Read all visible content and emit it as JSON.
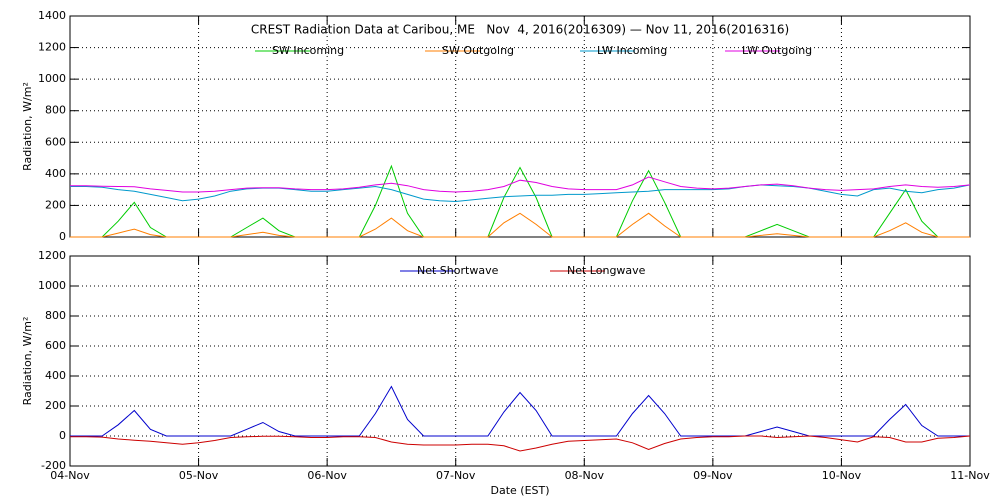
{
  "chart_data": [
    {
      "type": "line",
      "title": "CREST Radiation Data at Caribou, ME   Nov  4, 2016(2016309) — Nov 11, 2016(2016316)",
      "y_label": "Radiation, W/m²",
      "x": [
        0,
        0.125,
        0.25,
        0.375,
        0.5,
        0.625,
        0.75,
        0.875,
        1,
        1.125,
        1.25,
        1.375,
        1.5,
        1.625,
        1.75,
        1.875,
        2,
        2.125,
        2.25,
        2.375,
        2.5,
        2.625,
        2.75,
        2.875,
        3,
        3.125,
        3.25,
        3.375,
        3.5,
        3.625,
        3.75,
        3.875,
        4,
        4.125,
        4.25,
        4.375,
        4.5,
        4.625,
        4.75,
        4.875,
        5,
        5.125,
        5.25,
        5.375,
        5.5,
        5.625,
        5.75,
        5.875,
        6,
        6.125,
        6.25,
        6.375,
        6.5,
        6.625,
        6.75,
        6.875,
        7
      ],
      "xlim": [
        0,
        7
      ],
      "xticks": [
        1,
        2,
        3,
        4,
        5,
        6
      ],
      "ylim": [
        0,
        1400
      ],
      "yticks": [
        0,
        200,
        400,
        600,
        800,
        1000,
        1200,
        1400
      ],
      "grid": true,
      "series": [
        {
          "name": "SW Incoming",
          "color": "#00cc00",
          "values": [
            0,
            0,
            0,
            100,
            220,
            60,
            0,
            0,
            0,
            0,
            0,
            60,
            120,
            40,
            0,
            0,
            0,
            0,
            0,
            200,
            450,
            150,
            0,
            0,
            0,
            0,
            0,
            250,
            440,
            250,
            0,
            0,
            0,
            0,
            0,
            230,
            420,
            220,
            0,
            0,
            0,
            0,
            0,
            40,
            80,
            40,
            0,
            0,
            0,
            0,
            0,
            150,
            300,
            100,
            0,
            0,
            0
          ]
        },
        {
          "name": "SW Outgoing",
          "color": "#ff7f00",
          "values": [
            0,
            0,
            0,
            25,
            50,
            15,
            0,
            0,
            0,
            0,
            0,
            15,
            30,
            10,
            0,
            0,
            0,
            0,
            0,
            50,
            120,
            40,
            0,
            0,
            0,
            0,
            0,
            90,
            150,
            80,
            0,
            0,
            0,
            0,
            0,
            80,
            150,
            70,
            0,
            0,
            0,
            0,
            0,
            10,
            20,
            10,
            0,
            0,
            0,
            0,
            0,
            40,
            90,
            30,
            0,
            0,
            0
          ]
        },
        {
          "name": "LW Incoming",
          "color": "#0099cc",
          "values": [
            320,
            320,
            315,
            300,
            290,
            270,
            250,
            230,
            240,
            260,
            290,
            305,
            310,
            310,
            300,
            290,
            290,
            300,
            310,
            320,
            300,
            270,
            240,
            230,
            225,
            235,
            245,
            255,
            260,
            265,
            265,
            270,
            270,
            275,
            280,
            285,
            290,
            300,
            300,
            300,
            300,
            305,
            320,
            330,
            325,
            320,
            310,
            290,
            270,
            260,
            300,
            310,
            290,
            280,
            300,
            310,
            330
          ]
        },
        {
          "name": "LW Outgoing",
          "color": "#e000e0",
          "values": [
            325,
            325,
            322,
            320,
            318,
            305,
            295,
            285,
            285,
            290,
            300,
            310,
            312,
            312,
            305,
            300,
            300,
            305,
            315,
            330,
            340,
            325,
            300,
            290,
            285,
            290,
            300,
            320,
            360,
            345,
            320,
            305,
            300,
            300,
            300,
            330,
            380,
            350,
            320,
            310,
            305,
            310,
            320,
            330,
            335,
            325,
            310,
            300,
            295,
            300,
            305,
            320,
            330,
            320,
            315,
            320,
            330
          ]
        }
      ]
    },
    {
      "type": "line",
      "y_label": "Radiation, W/m²",
      "x_label": "Date (EST)",
      "x": [
        0,
        0.125,
        0.25,
        0.375,
        0.5,
        0.625,
        0.75,
        0.875,
        1,
        1.125,
        1.25,
        1.375,
        1.5,
        1.625,
        1.75,
        1.875,
        2,
        2.125,
        2.25,
        2.375,
        2.5,
        2.625,
        2.75,
        2.875,
        3,
        3.125,
        3.25,
        3.375,
        3.5,
        3.625,
        3.75,
        3.875,
        4,
        4.125,
        4.25,
        4.375,
        4.5,
        4.625,
        4.75,
        4.875,
        5,
        5.125,
        5.25,
        5.375,
        5.5,
        5.625,
        5.75,
        5.875,
        6,
        6.125,
        6.25,
        6.375,
        6.5,
        6.625,
        6.75,
        6.875,
        7
      ],
      "xlim": [
        0,
        7
      ],
      "xticks": [
        {
          "value": 0,
          "label": "04-Nov"
        },
        {
          "value": 1,
          "label": "05-Nov"
        },
        {
          "value": 2,
          "label": "06-Nov"
        },
        {
          "value": 3,
          "label": "07-Nov"
        },
        {
          "value": 4,
          "label": "08-Nov"
        },
        {
          "value": 5,
          "label": "09-Nov"
        },
        {
          "value": 6,
          "label": "10-Nov"
        },
        {
          "value": 7,
          "label": "11-Nov"
        }
      ],
      "ylim": [
        -200,
        1200
      ],
      "yticks": [
        -200,
        0,
        200,
        400,
        600,
        800,
        1000,
        1200
      ],
      "grid": true,
      "series": [
        {
          "name": "Net Shortwave",
          "color": "#0000cc",
          "values": [
            0,
            0,
            0,
            75,
            170,
            45,
            0,
            0,
            0,
            0,
            0,
            45,
            90,
            30,
            0,
            0,
            0,
            0,
            0,
            150,
            330,
            110,
            0,
            0,
            0,
            0,
            0,
            160,
            290,
            170,
            0,
            0,
            0,
            0,
            0,
            150,
            270,
            150,
            0,
            0,
            0,
            0,
            0,
            30,
            60,
            30,
            0,
            0,
            0,
            0,
            0,
            110,
            210,
            70,
            0,
            0,
            0
          ]
        },
        {
          "name": "Net Longwave",
          "color": "#cc0000",
          "values": [
            -5,
            -5,
            -7,
            -20,
            -28,
            -35,
            -45,
            -55,
            -45,
            -30,
            -10,
            -5,
            -2,
            -2,
            -5,
            -10,
            -10,
            -5,
            -5,
            -10,
            -40,
            -55,
            -60,
            -60,
            -60,
            -55,
            -55,
            -65,
            -100,
            -80,
            -55,
            -35,
            -30,
            -25,
            -20,
            -45,
            -90,
            -50,
            -20,
            -10,
            -5,
            -5,
            0,
            0,
            -10,
            -5,
            0,
            -10,
            -25,
            -40,
            -5,
            -10,
            -40,
            -40,
            -15,
            -10,
            0
          ]
        }
      ]
    }
  ]
}
